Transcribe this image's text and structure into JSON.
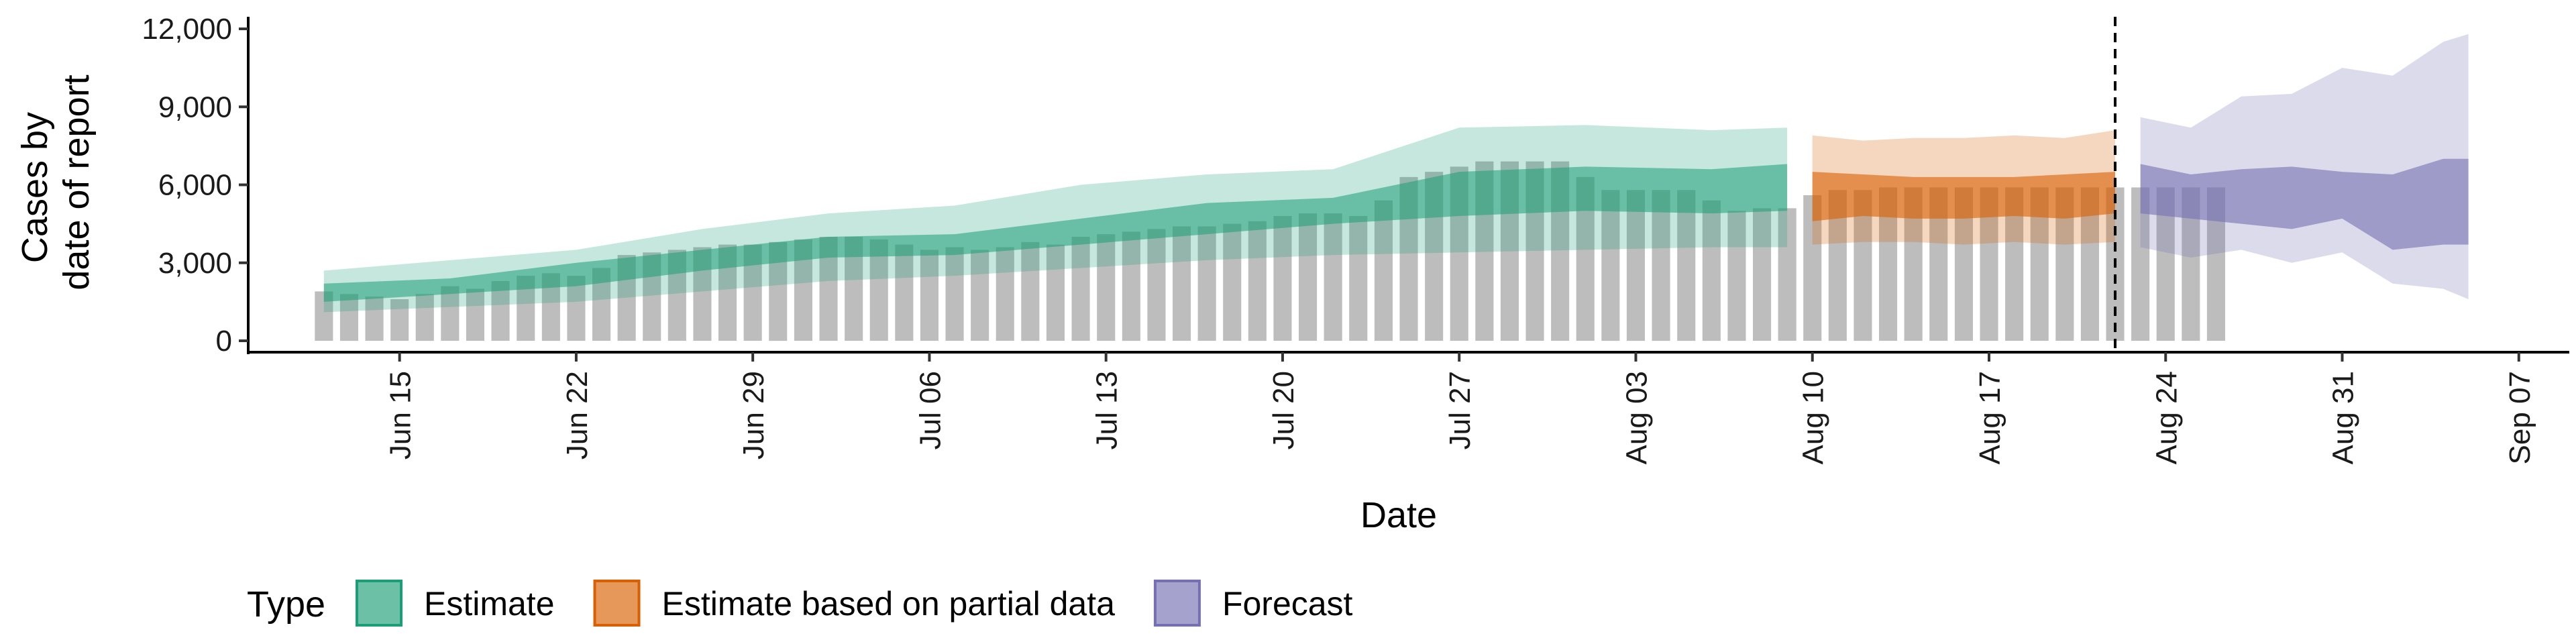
{
  "chart_data": {
    "type": "bar",
    "title": "",
    "xlabel": "Date",
    "ylabel_lines": [
      "Cases by",
      "date of report"
    ],
    "ylim": [
      0,
      12500
    ],
    "yticks": [
      0,
      3000,
      6000,
      9000,
      12000
    ],
    "ytick_labels": [
      "0",
      "3,000",
      "6,000",
      "9,000",
      "12,000"
    ],
    "x_range": [
      "2020-06-09",
      "2020-09-09"
    ],
    "xticks": [
      {
        "date": "2020-06-15",
        "label": "Jun 15"
      },
      {
        "date": "2020-06-22",
        "label": "Jun 22"
      },
      {
        "date": "2020-06-29",
        "label": "Jun 29"
      },
      {
        "date": "2020-07-06",
        "label": "Jul 06"
      },
      {
        "date": "2020-07-13",
        "label": "Jul 13"
      },
      {
        "date": "2020-07-20",
        "label": "Jul 20"
      },
      {
        "date": "2020-07-27",
        "label": "Jul 27"
      },
      {
        "date": "2020-08-03",
        "label": "Aug 03"
      },
      {
        "date": "2020-08-10",
        "label": "Aug 10"
      },
      {
        "date": "2020-08-17",
        "label": "Aug 17"
      },
      {
        "date": "2020-08-24",
        "label": "Aug 24"
      },
      {
        "date": "2020-08-31",
        "label": "Aug 31"
      },
      {
        "date": "2020-09-07",
        "label": "Sep 07"
      }
    ],
    "grid": false,
    "legend_position": "bottom",
    "legend_title": "Type",
    "forecast_cutoff_date": "2020-08-22",
    "bars": {
      "start_date": "2020-06-12",
      "color": "#bdbdbd",
      "values": [
        1900,
        1800,
        1700,
        1600,
        1800,
        2100,
        2000,
        2300,
        2500,
        2600,
        2500,
        2800,
        3300,
        3400,
        3500,
        3600,
        3700,
        3700,
        3800,
        3900,
        4000,
        4000,
        3900,
        3700,
        3500,
        3600,
        3500,
        3600,
        3800,
        3700,
        4000,
        4100,
        4200,
        4300,
        4400,
        4400,
        4500,
        4600,
        4800,
        4900,
        4900,
        4800,
        5400,
        6300,
        6500,
        6700,
        6900,
        6900,
        6900,
        6900,
        6300,
        5800,
        5800,
        5800,
        5800,
        5400,
        5000,
        5100,
        5100,
        5600,
        5800,
        5800,
        5900,
        5900,
        5900,
        5900,
        5900,
        5900,
        5900,
        5900,
        5900,
        5900,
        5900,
        5900,
        5900,
        5900
      ]
    },
    "series": [
      {
        "name": "Estimate",
        "color": "#1b9e77",
        "outer_alpha": 0.25,
        "inner_alpha": 0.55,
        "dates": [
          "2020-06-12",
          "2020-06-17",
          "2020-06-22",
          "2020-06-27",
          "2020-07-02",
          "2020-07-07",
          "2020-07-12",
          "2020-07-17",
          "2020-07-22",
          "2020-07-27",
          "2020-08-01",
          "2020-08-06",
          "2020-08-09"
        ],
        "lower90": [
          1100,
          1300,
          1500,
          1900,
          2300,
          2500,
          2800,
          3100,
          3300,
          3400,
          3500,
          3600,
          3600
        ],
        "lower50": [
          1500,
          1800,
          2100,
          2700,
          3200,
          3300,
          3700,
          4100,
          4500,
          4800,
          5000,
          4900,
          5000
        ],
        "upper50": [
          2200,
          2400,
          3000,
          3500,
          4000,
          4100,
          4700,
          5300,
          5500,
          6500,
          6700,
          6600,
          6800
        ],
        "upper90": [
          2700,
          3100,
          3500,
          4300,
          4900,
          5200,
          6000,
          6400,
          6600,
          8200,
          8300,
          8100,
          8200
        ]
      },
      {
        "name": "Estimate based on partial data",
        "color": "#d95f02",
        "outer_alpha": 0.25,
        "inner_alpha": 0.6,
        "dates": [
          "2020-08-10",
          "2020-08-12",
          "2020-08-14",
          "2020-08-16",
          "2020-08-18",
          "2020-08-20",
          "2020-08-22"
        ],
        "lower90": [
          3700,
          3800,
          3800,
          3700,
          3800,
          3700,
          3800
        ],
        "lower50": [
          4600,
          4800,
          4700,
          4700,
          4800,
          4700,
          4900
        ],
        "upper50": [
          6500,
          6400,
          6300,
          6300,
          6300,
          6400,
          6500
        ],
        "upper90": [
          7900,
          7700,
          7800,
          7800,
          7900,
          7800,
          8100
        ]
      },
      {
        "name": "Forecast",
        "color": "#7570b3",
        "outer_alpha": 0.25,
        "inner_alpha": 0.6,
        "dates": [
          "2020-08-23",
          "2020-08-25",
          "2020-08-27",
          "2020-08-29",
          "2020-08-31",
          "2020-09-02",
          "2020-09-04",
          "2020-09-05"
        ],
        "lower90": [
          3600,
          3200,
          3500,
          3000,
          3400,
          2200,
          2000,
          1600
        ],
        "lower50": [
          4900,
          4700,
          4500,
          4300,
          4700,
          3500,
          3700,
          3700
        ],
        "upper50": [
          6800,
          6400,
          6600,
          6700,
          6500,
          6400,
          7000,
          7000
        ],
        "upper90": [
          8600,
          8200,
          9400,
          9500,
          10500,
          10200,
          11500,
          11800
        ]
      }
    ]
  }
}
